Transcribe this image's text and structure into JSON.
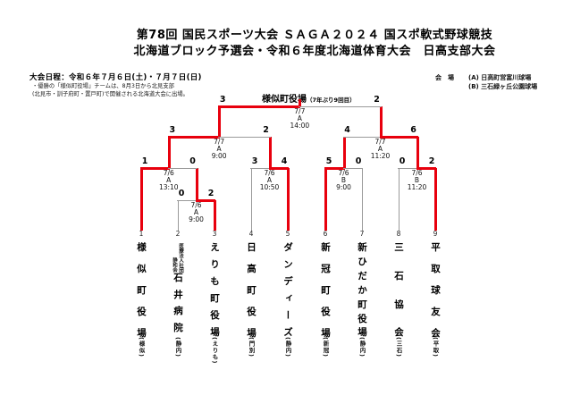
{
  "header": {
    "title_line1": "第78回 国民スポーツ大会 ＳＡＧＡ２０２４ 国スポ軟式野球競技",
    "title_line2": "北海道ブロック予選会・令和６年度北海道体育大会　日高支部大会",
    "schedule": "大会日程：令和６年７月６日(土)・７月７日(日)",
    "note_line1": "・優勝の「様似町役場」チームは、8月3日から北見支部",
    "note_line2": "(北見市・訓子府町・置戸町)で開催される北海道大会に出場。",
    "venue_label": "会　場",
    "venue_a": "(A) 日高町営富川球場",
    "venue_b": "(B) 三石緑ヶ丘公園球場"
  },
  "champion": {
    "name": "様似町役場",
    "note": "（7年ぶり9回目）"
  },
  "colors": {
    "winner_path": "#e8000d",
    "bracket_line": "#9a9a9a"
  },
  "teams": [
    {
      "no": "1",
      "name": "様似町役場",
      "location": "(様似)"
    },
    {
      "no": "2",
      "name": "石井病院",
      "prefix1": "医療法人社団",
      "prefix2": "静和会",
      "location": "(静内)"
    },
    {
      "no": "3",
      "name": "えりも町役場",
      "location": "(えりも)"
    },
    {
      "no": "4",
      "name": "日高町役場",
      "location": "(門別)"
    },
    {
      "no": "5",
      "name": "ダンディーズ",
      "location": "(静内)"
    },
    {
      "no": "6",
      "name": "新冠町役場",
      "location": "(新冠)"
    },
    {
      "no": "7",
      "name": "新ひだか町役場",
      "location": "(静内)"
    },
    {
      "no": "8",
      "name": "三石協会",
      "location": "(三石)"
    },
    {
      "no": "9",
      "name": "平取球友会",
      "location": "(平取)"
    }
  ],
  "matches": [
    {
      "id": "r1_23",
      "date": "7/6",
      "venue": "A",
      "time": "9:00",
      "score_left": "0",
      "score_right": "2",
      "winner": "right"
    },
    {
      "id": "qf_1",
      "date": "7/6",
      "venue": "A",
      "time": "13:10",
      "score_left": "1",
      "score_right": "0",
      "winner": "left"
    },
    {
      "id": "r1_45",
      "date": "7/6",
      "venue": "A",
      "time": "10:50",
      "score_left": "3",
      "score_right": "4",
      "winner": "right"
    },
    {
      "id": "r1_67",
      "date": "7/6",
      "venue": "B",
      "time": "9:00",
      "score_left": "5",
      "score_right": "0",
      "winner": "left"
    },
    {
      "id": "r1_89",
      "date": "7/6",
      "venue": "B",
      "time": "11:20",
      "score_left": "0",
      "score_right": "2",
      "winner": "right"
    },
    {
      "id": "sf_left",
      "date": "7/7",
      "venue": "A",
      "time": "9:00",
      "score_left": "3",
      "score_right": "2",
      "winner": "left"
    },
    {
      "id": "sf_right",
      "date": "7/7",
      "venue": "A",
      "time": "11:20",
      "score_left": "4",
      "score_right": "6",
      "winner": "right"
    },
    {
      "id": "final",
      "date": "7/7",
      "venue": "A",
      "time": "14:00",
      "score_left": "3",
      "score_right": "2",
      "winner": "left"
    }
  ]
}
